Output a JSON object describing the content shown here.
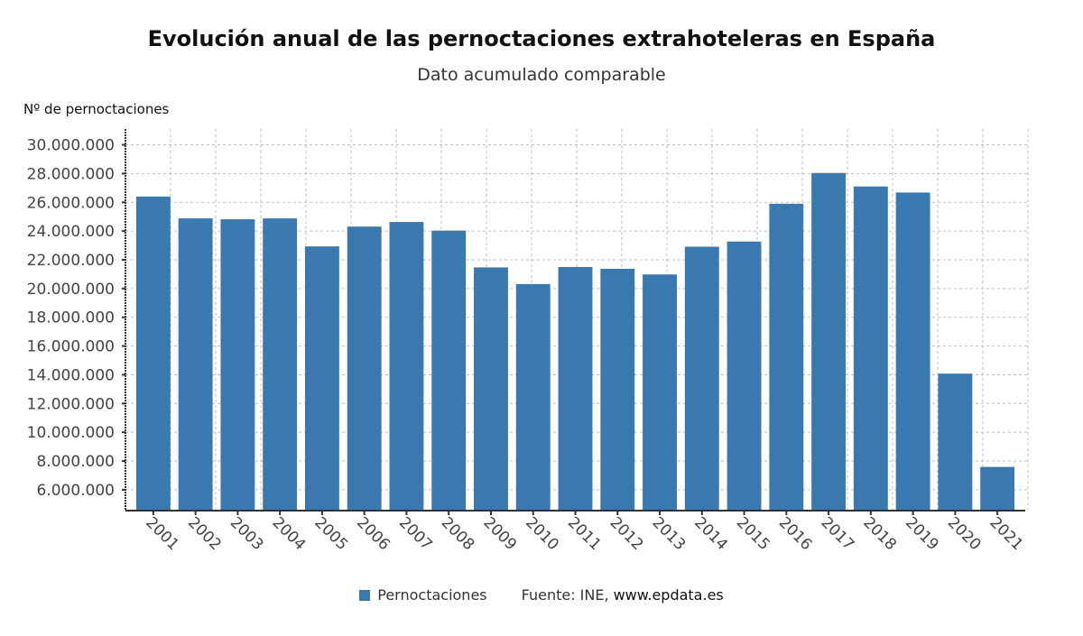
{
  "chart_data": {
    "type": "bar",
    "title": "Evolución anual de las pernoctaciones extrahoteleras en España",
    "subtitle": "Dato acumulado comparable",
    "xlabel": "",
    "ylabel": "Nº de pernoctaciones",
    "categories": [
      "2001",
      "2002",
      "2003",
      "2004",
      "2005",
      "2006",
      "2007",
      "2008",
      "2009",
      "2010",
      "2011",
      "2012",
      "2013",
      "2014",
      "2015",
      "2016",
      "2017",
      "2018",
      "2019",
      "2020",
      "2021"
    ],
    "series": [
      {
        "name": "Pernoctaciones",
        "color": "#3a78b0",
        "values": [
          26400000,
          24880000,
          24820000,
          24880000,
          22930000,
          24310000,
          24630000,
          24030000,
          21470000,
          20310000,
          21500000,
          21370000,
          20980000,
          22910000,
          23270000,
          25900000,
          28040000,
          27100000,
          26680000,
          14080000,
          7590000
        ]
      }
    ],
    "ylim": [
      4550000,
      31100000
    ],
    "yticks": [
      6000000,
      8000000,
      10000000,
      12000000,
      14000000,
      16000000,
      18000000,
      20000000,
      22000000,
      24000000,
      26000000,
      28000000,
      30000000
    ],
    "ytick_labels": [
      "6.000.000",
      "8.000.000",
      "10.000.000",
      "12.000.000",
      "14.000.000",
      "16.000.000",
      "18.000.000",
      "20.000.000",
      "22.000.000",
      "24.000.000",
      "26.000.000",
      "28.000.000",
      "30.000.000"
    ],
    "grid": true,
    "legend_position": "bottom-center",
    "source_prefix": "Fuente: INE,",
    "source_site": "www.epdata.es"
  }
}
